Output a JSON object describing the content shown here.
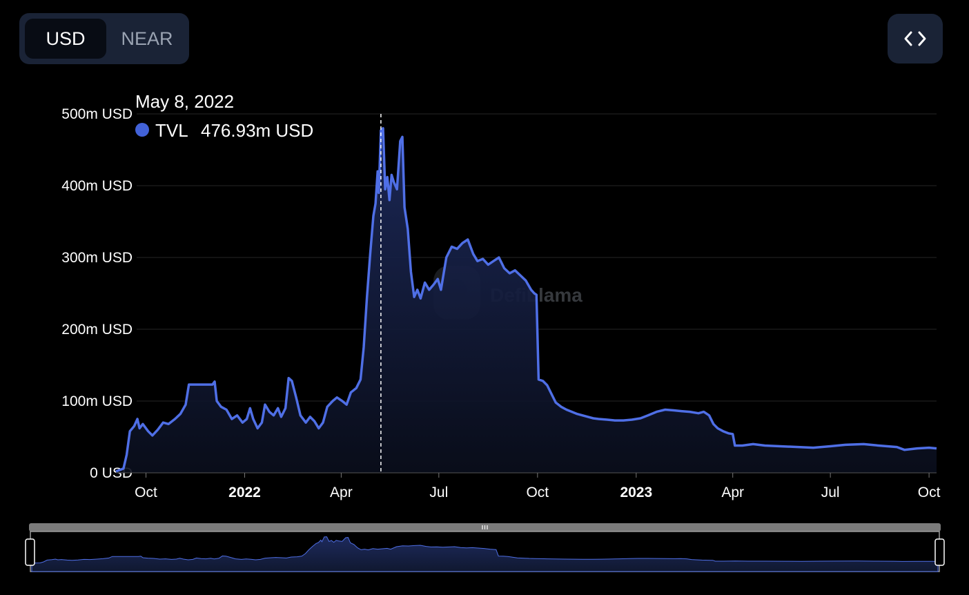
{
  "toggle": {
    "options": [
      {
        "label": "USD",
        "active": true
      },
      {
        "label": "NEAR",
        "active": false
      }
    ]
  },
  "embed": {
    "icon": "code-brackets-icon"
  },
  "tooltip": {
    "date": "May 8, 2022",
    "series": "TVL",
    "value": "476.93m USD",
    "marker_color": "#4262d8"
  },
  "watermark": {
    "text": "DefiLlama"
  },
  "colors": {
    "line": "#4f6fe6",
    "area_top": "#1d2a5c",
    "grid": "#2a2a2a"
  },
  "chart_data": {
    "type": "area",
    "title": "",
    "xlabel": "",
    "ylabel": "",
    "x_ticks": [
      {
        "label": "Oct",
        "date": "2021-10-01",
        "bold": false
      },
      {
        "label": "2022",
        "date": "2022-01-01",
        "bold": true
      },
      {
        "label": "Apr",
        "date": "2022-04-01",
        "bold": false
      },
      {
        "label": "Jul",
        "date": "2022-07-01",
        "bold": false
      },
      {
        "label": "Oct",
        "date": "2022-10-01",
        "bold": false
      },
      {
        "label": "2023",
        "date": "2023-01-01",
        "bold": true
      },
      {
        "label": "Apr",
        "date": "2023-04-01",
        "bold": false
      },
      {
        "label": "Jul",
        "date": "2023-07-01",
        "bold": false
      },
      {
        "label": "Oct",
        "date": "2023-10-01",
        "bold": false
      }
    ],
    "y_ticks": [
      {
        "label": "0 USD",
        "value": 0
      },
      {
        "label": "100m USD",
        "value": 100
      },
      {
        "label": "200m USD",
        "value": 200
      },
      {
        "label": "300m USD",
        "value": 300
      },
      {
        "label": "400m USD",
        "value": 400
      },
      {
        "label": "500m USD",
        "value": 500
      }
    ],
    "ylim": [
      0,
      500
    ],
    "xlim": [
      "2021-09-03",
      "2023-10-08"
    ],
    "grid": true,
    "crosshair_date": "2022-05-08",
    "series": [
      {
        "name": "TVL",
        "points": [
          [
            "2021-09-03",
            2
          ],
          [
            "2021-09-10",
            6
          ],
          [
            "2021-09-13",
            25
          ],
          [
            "2021-09-16",
            58
          ],
          [
            "2021-09-20",
            65
          ],
          [
            "2021-09-23",
            75
          ],
          [
            "2021-09-25",
            62
          ],
          [
            "2021-09-28",
            68
          ],
          [
            "2021-10-03",
            58
          ],
          [
            "2021-10-07",
            52
          ],
          [
            "2021-10-12",
            60
          ],
          [
            "2021-10-17",
            70
          ],
          [
            "2021-10-22",
            68
          ],
          [
            "2021-10-28",
            75
          ],
          [
            "2021-11-02",
            82
          ],
          [
            "2021-11-07",
            95
          ],
          [
            "2021-11-10",
            123
          ],
          [
            "2021-11-18",
            123
          ],
          [
            "2021-11-25",
            123
          ],
          [
            "2021-12-02",
            123
          ],
          [
            "2021-12-04",
            127
          ],
          [
            "2021-12-06",
            100
          ],
          [
            "2021-12-10",
            92
          ],
          [
            "2021-12-15",
            88
          ],
          [
            "2021-12-20",
            75
          ],
          [
            "2021-12-25",
            80
          ],
          [
            "2021-12-30",
            70
          ],
          [
            "2022-01-03",
            75
          ],
          [
            "2022-01-06",
            90
          ],
          [
            "2022-01-09",
            75
          ],
          [
            "2022-01-13",
            62
          ],
          [
            "2022-01-17",
            70
          ],
          [
            "2022-01-20",
            95
          ],
          [
            "2022-01-24",
            85
          ],
          [
            "2022-01-28",
            80
          ],
          [
            "2022-02-01",
            90
          ],
          [
            "2022-02-04",
            78
          ],
          [
            "2022-02-08",
            90
          ],
          [
            "2022-02-11",
            132
          ],
          [
            "2022-02-14",
            128
          ],
          [
            "2022-02-18",
            105
          ],
          [
            "2022-02-22",
            80
          ],
          [
            "2022-02-27",
            70
          ],
          [
            "2022-03-03",
            78
          ],
          [
            "2022-03-07",
            72
          ],
          [
            "2022-03-11",
            62
          ],
          [
            "2022-03-15",
            70
          ],
          [
            "2022-03-19",
            92
          ],
          [
            "2022-03-24",
            100
          ],
          [
            "2022-03-28",
            105
          ],
          [
            "2022-04-02",
            100
          ],
          [
            "2022-04-06",
            95
          ],
          [
            "2022-04-10",
            112
          ],
          [
            "2022-04-15",
            118
          ],
          [
            "2022-04-19",
            130
          ],
          [
            "2022-04-22",
            175
          ],
          [
            "2022-04-25",
            245
          ],
          [
            "2022-04-28",
            305
          ],
          [
            "2022-05-01",
            358
          ],
          [
            "2022-05-03",
            375
          ],
          [
            "2022-05-05",
            420
          ],
          [
            "2022-05-06",
            390
          ],
          [
            "2022-05-08",
            477
          ],
          [
            "2022-05-10",
            480
          ],
          [
            "2022-05-12",
            395
          ],
          [
            "2022-05-14",
            412
          ],
          [
            "2022-05-16",
            380
          ],
          [
            "2022-05-18",
            415
          ],
          [
            "2022-05-20",
            405
          ],
          [
            "2022-05-23",
            395
          ],
          [
            "2022-05-26",
            462
          ],
          [
            "2022-05-28",
            468
          ],
          [
            "2022-05-30",
            370
          ],
          [
            "2022-06-02",
            340
          ],
          [
            "2022-06-05",
            280
          ],
          [
            "2022-06-08",
            245
          ],
          [
            "2022-06-11",
            255
          ],
          [
            "2022-06-14",
            243
          ],
          [
            "2022-06-18",
            265
          ],
          [
            "2022-06-22",
            255
          ],
          [
            "2022-06-26",
            262
          ],
          [
            "2022-06-30",
            270
          ],
          [
            "2022-07-03",
            255
          ],
          [
            "2022-07-08",
            300
          ],
          [
            "2022-07-13",
            315
          ],
          [
            "2022-07-18",
            312
          ],
          [
            "2022-07-23",
            320
          ],
          [
            "2022-07-28",
            325
          ],
          [
            "2022-08-02",
            305
          ],
          [
            "2022-08-06",
            295
          ],
          [
            "2022-08-11",
            298
          ],
          [
            "2022-08-16",
            290
          ],
          [
            "2022-08-21",
            295
          ],
          [
            "2022-08-26",
            300
          ],
          [
            "2022-08-31",
            285
          ],
          [
            "2022-09-05",
            278
          ],
          [
            "2022-09-10",
            282
          ],
          [
            "2022-09-15",
            275
          ],
          [
            "2022-09-20",
            268
          ],
          [
            "2022-09-25",
            255
          ],
          [
            "2022-09-28",
            250
          ],
          [
            "2022-09-30",
            248
          ],
          [
            "2022-10-02",
            130
          ],
          [
            "2022-10-06",
            128
          ],
          [
            "2022-10-10",
            122
          ],
          [
            "2022-10-14",
            110
          ],
          [
            "2022-10-18",
            98
          ],
          [
            "2022-10-23",
            92
          ],
          [
            "2022-10-28",
            88
          ],
          [
            "2022-11-02",
            85
          ],
          [
            "2022-11-07",
            82
          ],
          [
            "2022-11-12",
            80
          ],
          [
            "2022-11-17",
            78
          ],
          [
            "2022-11-22",
            76
          ],
          [
            "2022-11-27",
            75
          ],
          [
            "2022-12-05",
            74
          ],
          [
            "2022-12-12",
            73
          ],
          [
            "2022-12-20",
            73
          ],
          [
            "2022-12-28",
            74
          ],
          [
            "2023-01-05",
            76
          ],
          [
            "2023-01-12",
            80
          ],
          [
            "2023-01-20",
            85
          ],
          [
            "2023-01-28",
            88
          ],
          [
            "2023-02-05",
            87
          ],
          [
            "2023-02-12",
            86
          ],
          [
            "2023-02-20",
            85
          ],
          [
            "2023-02-28",
            83
          ],
          [
            "2023-03-05",
            85
          ],
          [
            "2023-03-10",
            80
          ],
          [
            "2023-03-14",
            68
          ],
          [
            "2023-03-18",
            62
          ],
          [
            "2023-03-23",
            58
          ],
          [
            "2023-03-28",
            55
          ],
          [
            "2023-04-01",
            54
          ],
          [
            "2023-04-03",
            38
          ],
          [
            "2023-04-10",
            38
          ],
          [
            "2023-04-20",
            40
          ],
          [
            "2023-05-01",
            38
          ],
          [
            "2023-05-15",
            37
          ],
          [
            "2023-06-01",
            36
          ],
          [
            "2023-06-15",
            35
          ],
          [
            "2023-07-01",
            37
          ],
          [
            "2023-07-15",
            39
          ],
          [
            "2023-08-01",
            40
          ],
          [
            "2023-08-15",
            38
          ],
          [
            "2023-09-01",
            36
          ],
          [
            "2023-09-08",
            32
          ],
          [
            "2023-09-20",
            34
          ],
          [
            "2023-10-01",
            35
          ],
          [
            "2023-10-08",
            34
          ]
        ]
      }
    ]
  }
}
